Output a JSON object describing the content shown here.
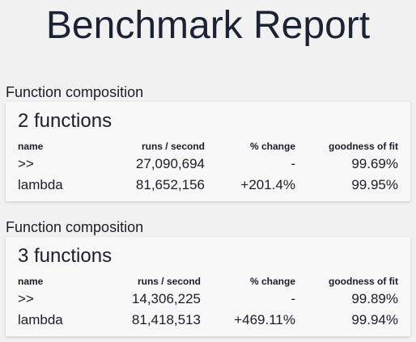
{
  "page": {
    "title": "Benchmark Report"
  },
  "columns": {
    "name": "name",
    "runs": "runs / second",
    "change": "% change",
    "fit": "goodness of fit"
  },
  "sections": [
    {
      "label": "Function composition",
      "title": "2 functions",
      "rows": [
        {
          "name": ">>",
          "runs": "27,090,694",
          "change": "-",
          "fit": "99.69%"
        },
        {
          "name": "lambda",
          "runs": "81,652,156",
          "change": "+201.4%",
          "fit": "99.95%"
        }
      ]
    },
    {
      "label": "Function composition",
      "title": "3 functions",
      "rows": [
        {
          "name": ">>",
          "runs": "14,306,225",
          "change": "-",
          "fit": "99.89%"
        },
        {
          "name": "lambda",
          "runs": "81,418,513",
          "change": "+469.11%",
          "fit": "99.94%"
        }
      ]
    }
  ]
}
